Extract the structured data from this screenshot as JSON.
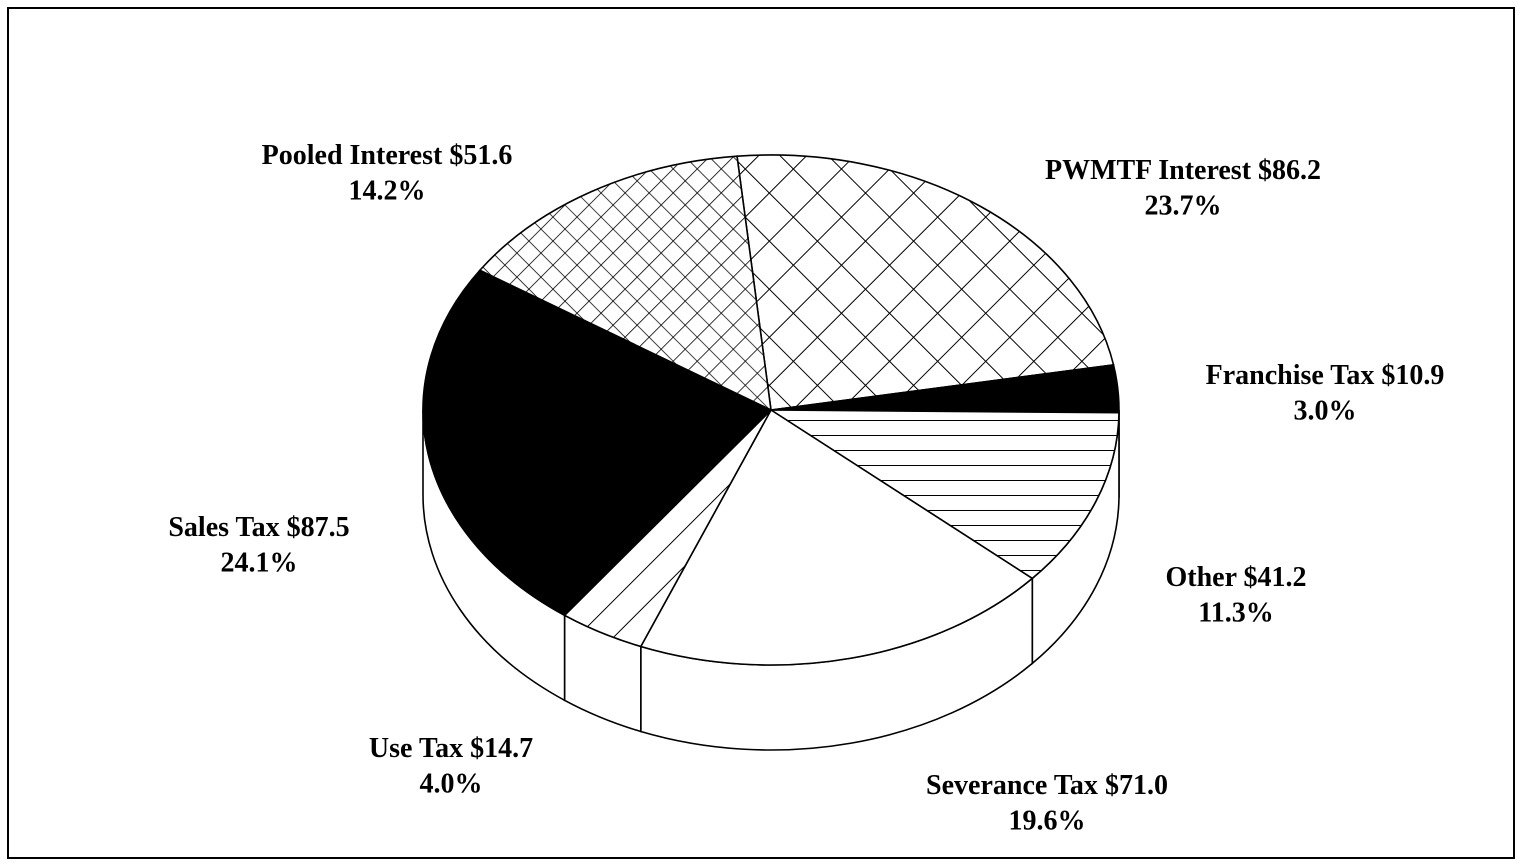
{
  "chart_data": {
    "type": "pie",
    "categories": [
      "PWMTF Interest",
      "Franchise Tax",
      "Other",
      "Severance Tax",
      "Use Tax",
      "Sales Tax",
      "Pooled Interest"
    ],
    "values": [
      23.7,
      3.0,
      11.3,
      19.6,
      4.0,
      24.1,
      14.2
    ],
    "value_labels": [
      "23.7%",
      "3.0%",
      "11.3%",
      "19.6%",
      "4.0%",
      "24.1%",
      "14.2%"
    ],
    "amounts": [
      86.2,
      10.9,
      41.2,
      71.0,
      14.7,
      87.5,
      51.6
    ],
    "amount_labels": [
      "$86.2",
      "$10.9",
      "$41.2",
      "$71.0",
      "$14.7",
      "$87.5",
      "$51.6"
    ],
    "patterns": [
      "crosshatch-wide",
      "solid",
      "horizontal",
      "none",
      "diagonal",
      "solid",
      "crosshatch-fine"
    ],
    "three_d": true
  }
}
